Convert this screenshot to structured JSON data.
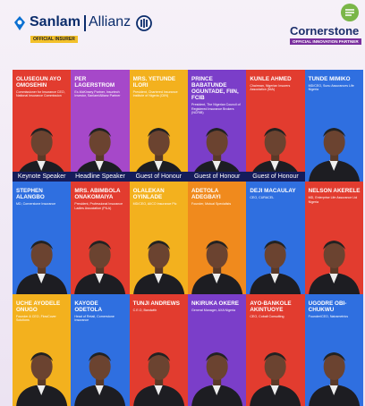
{
  "header": {
    "sponsor_left": {
      "brand_one": "Sanlam",
      "brand_two": "Allianz",
      "tag": "OFFICIAL INSURER"
    },
    "sponsor_right": {
      "brand": "Cornerstone",
      "tag": "OFFICIAL INNOVATION PARTNER"
    }
  },
  "speakers": [
    {
      "name": "OLUSEGUN AYO OMOSEHIN",
      "title": "Commissioner for Insurance CEO, National Insurance Commission",
      "badge": "Keynote Speaker"
    },
    {
      "name": "PER LAGERSTROM",
      "title": "Ex-McKinsey Partner, Insurtech Investor, Sanlam/Allianz Partner",
      "badge": "Headline Speaker"
    },
    {
      "name": "MRS. YETUNDE ILORI",
      "title": "President, Chartered Insurance Institute of Nigeria (CIIN)",
      "badge": "Guest of Honour"
    },
    {
      "name": "PRINCE BABATUNDE OGUNTADE, FIIN, FCIB",
      "title": "President, The Nigerian Council of Registered Insurance Brokers (NCRIB)",
      "badge": "Guest of Honour"
    },
    {
      "name": "KUNLE AHMED",
      "title": "Chairman, Nigerian Insurers Association (NIA)",
      "badge": "Guest of Honour"
    },
    {
      "name": "TUNDE MIMIKO",
      "title": "MD/CEO, Sunu Assurances Life Nigeria"
    },
    {
      "name": "STEPHEN ALANGBO",
      "title": "MD, Cornerstone Insurance"
    },
    {
      "name": "MRS. ABIMBOLA ONAKOMAIYA",
      "title": "President, Professional Insurance Ladies Association (PILA)"
    },
    {
      "name": "OLALEKAN OYINLADE",
      "title": "MD/CEO, AIICO Insurance Plc"
    },
    {
      "name": "ADETOLA ADEGBAYI",
      "title": "Founder, Mutual Specialists"
    },
    {
      "name": "DEJI MACAULAY",
      "title": "CEO, CURACEL"
    },
    {
      "name": "NELSON AKERELE",
      "title": "MD, Enterprise Life Assurance Ltd Nigeria"
    },
    {
      "name": "UCHE AYODELE ONUGO",
      "title": "Founder & CEO, FlowCover Solutions"
    },
    {
      "name": "KAYODE ODETOLA",
      "title": "Head of Retail, Cornerstone Insurance"
    },
    {
      "name": "TUNJI ANDREWS",
      "title": "C.E.O, Bandwith"
    },
    {
      "name": "NKIRUKA OKERE",
      "title": "General Manager, AXA Nigeria"
    },
    {
      "name": "AYO-BANKOLE AKINTUOYE",
      "title": "CEO, Cobalt Consulting"
    },
    {
      "name": "UGODRE OBI-CHUKWU",
      "title": "Founder/CEO, Nairametrics"
    }
  ]
}
